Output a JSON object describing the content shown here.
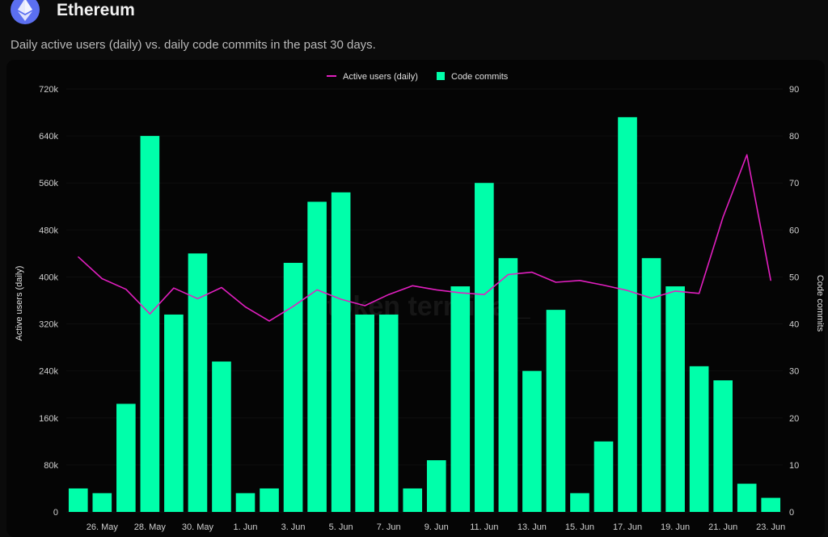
{
  "header": {
    "title": "Ethereum",
    "subtitle": "Daily active users (daily) vs. daily code commits in the past 30 days.",
    "logo_icon": "ethereum-diamond-icon"
  },
  "watermark": "token terminal_",
  "colors": {
    "bar": "#00ffaa",
    "line": "#e11fbf",
    "background": "#050505"
  },
  "chart_data": {
    "type": "bar",
    "legend": {
      "position": "top-center",
      "items": [
        "Active users (daily)",
        "Code commits"
      ]
    },
    "ylabel_left": "Active users (daily)",
    "ylabel_right": "Code commits",
    "ylim_left": [
      0,
      720000
    ],
    "ylim_right": [
      0,
      90
    ],
    "left_ticks": [
      "0",
      "80k",
      "160k",
      "240k",
      "320k",
      "400k",
      "480k",
      "560k",
      "640k",
      "720k"
    ],
    "right_ticks": [
      "0",
      "10",
      "20",
      "30",
      "40",
      "50",
      "60",
      "70",
      "80",
      "90"
    ],
    "x_tick_labels": [
      "26. May",
      "28. May",
      "30. May",
      "1. Jun",
      "3. Jun",
      "5. Jun",
      "7. Jun",
      "9. Jun",
      "11. Jun",
      "13. Jun",
      "15. Jun",
      "17. Jun",
      "19. Jun",
      "21. Jun",
      "23. Jun"
    ],
    "categories": [
      "25 May",
      "26 May",
      "27 May",
      "28 May",
      "29 May",
      "30 May",
      "31 May",
      "1 Jun",
      "2 Jun",
      "3 Jun",
      "4 Jun",
      "5 Jun",
      "6 Jun",
      "7 Jun",
      "8 Jun",
      "9 Jun",
      "10 Jun",
      "11 Jun",
      "12 Jun",
      "13 Jun",
      "14 Jun",
      "15 Jun",
      "16 Jun",
      "17 Jun",
      "18 Jun",
      "19 Jun",
      "20 Jun",
      "21 Jun",
      "22 Jun",
      "23 Jun"
    ],
    "series": [
      {
        "name": "Code commits",
        "type": "bar",
        "axis": "right",
        "values": [
          5,
          4,
          23,
          80,
          42,
          55,
          32,
          4,
          5,
          53,
          66,
          68,
          42,
          42,
          5,
          11,
          48,
          70,
          54,
          30,
          43,
          4,
          15,
          84,
          54,
          48,
          31,
          28,
          6,
          3
        ]
      },
      {
        "name": "Active users (daily)",
        "type": "line",
        "axis": "left",
        "values": [
          434000,
          397000,
          379000,
          337000,
          381000,
          363000,
          382000,
          349000,
          325000,
          350000,
          378000,
          362000,
          351000,
          370000,
          385000,
          378000,
          373000,
          370000,
          404000,
          408000,
          391000,
          394000,
          386000,
          377000,
          364000,
          376000,
          372000,
          502000,
          608000,
          394000
        ]
      }
    ]
  }
}
